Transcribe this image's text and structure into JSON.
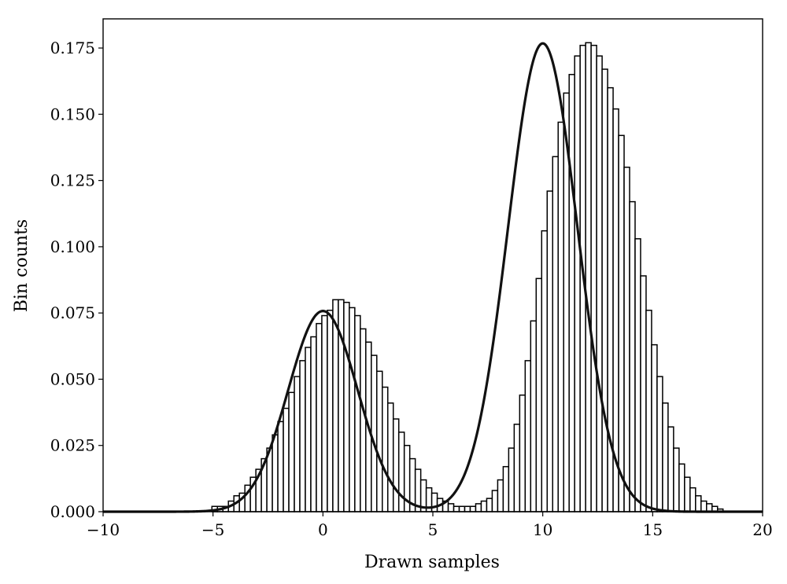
{
  "chart_data": {
    "type": "bar",
    "title": "",
    "xlabel": "Drawn samples",
    "ylabel": "Bin counts",
    "xlim": [
      -10,
      20
    ],
    "ylim": [
      0,
      0.186
    ],
    "grid": false,
    "legend": "none",
    "x_ticks": [
      -10,
      -5,
      0,
      5,
      10,
      15,
      20
    ],
    "x_tick_labels": [
      "−10",
      "−5",
      "0",
      "5",
      "10",
      "15",
      "20"
    ],
    "y_ticks": [
      0,
      0.025,
      0.05,
      0.075,
      0.1,
      0.125,
      0.15,
      0.175
    ],
    "y_tick_labels": [
      "0.000",
      "0.025",
      "0.050",
      "0.075",
      "0.100",
      "0.125",
      "0.150",
      "0.175"
    ],
    "histogram": {
      "bin_start": -5.05,
      "bin_width": 0.25,
      "values": [
        0.002,
        0.002,
        0.002,
        0.004,
        0.006,
        0.007,
        0.01,
        0.013,
        0.016,
        0.02,
        0.024,
        0.029,
        0.034,
        0.039,
        0.045,
        0.051,
        0.057,
        0.062,
        0.066,
        0.071,
        0.074,
        0.076,
        0.08,
        0.08,
        0.079,
        0.077,
        0.074,
        0.069,
        0.064,
        0.059,
        0.053,
        0.047,
        0.041,
        0.035,
        0.03,
        0.025,
        0.02,
        0.016,
        0.012,
        0.009,
        0.007,
        0.005,
        0.004,
        0.003,
        0.002,
        0.002,
        0.002,
        0.002,
        0.003,
        0.004,
        0.005,
        0.008,
        0.012,
        0.017,
        0.024,
        0.033,
        0.044,
        0.057,
        0.072,
        0.088,
        0.106,
        0.121,
        0.134,
        0.147,
        0.158,
        0.165,
        0.172,
        0.176,
        0.177,
        0.176,
        0.172,
        0.167,
        0.16,
        0.152,
        0.142,
        0.13,
        0.117,
        0.103,
        0.089,
        0.076,
        0.063,
        0.051,
        0.041,
        0.032,
        0.024,
        0.018,
        0.013,
        0.009,
        0.006,
        0.004,
        0.003,
        0.002,
        0.001
      ]
    },
    "curve": {
      "type": "line",
      "components": [
        {
          "weight": 0.3,
          "mean": 0.0,
          "sd": 1.58
        },
        {
          "weight": 0.7,
          "mean": 10.0,
          "sd": 1.58
        }
      ],
      "x_range": [
        -10,
        20
      ]
    }
  }
}
